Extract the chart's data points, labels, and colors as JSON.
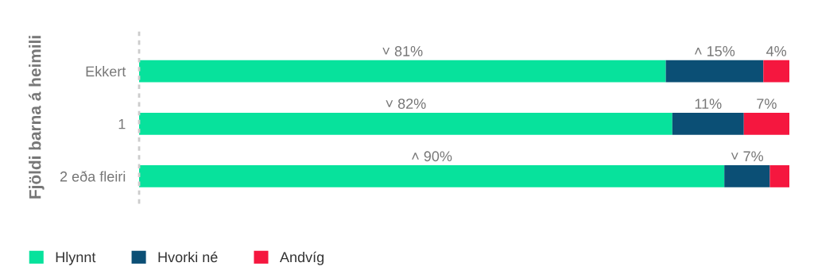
{
  "chart_data": {
    "type": "bar",
    "orientation": "horizontal",
    "stacked": true,
    "ylabel": "Fjöldi barna á heimili",
    "categories": [
      "Ekkert",
      "1",
      "2 eða fleiri"
    ],
    "series": [
      {
        "name": "Hlynnt",
        "color": "#07e29c",
        "values": [
          81,
          82,
          90
        ],
        "value_labels": [
          "˅ 81%",
          "˅ 82%",
          "˄ 90%"
        ]
      },
      {
        "name": "Hvorki né",
        "color": "#0b4f75",
        "values": [
          15,
          11,
          7
        ],
        "value_labels": [
          "˄ 15%",
          "11%",
          "˅ 7%"
        ]
      },
      {
        "name": "Andvíg",
        "color": "#f5173f",
        "values": [
          4,
          7,
          3
        ],
        "value_labels": [
          "4%",
          "7%",
          null
        ]
      }
    ],
    "legend": "bottom left",
    "grid": false
  }
}
